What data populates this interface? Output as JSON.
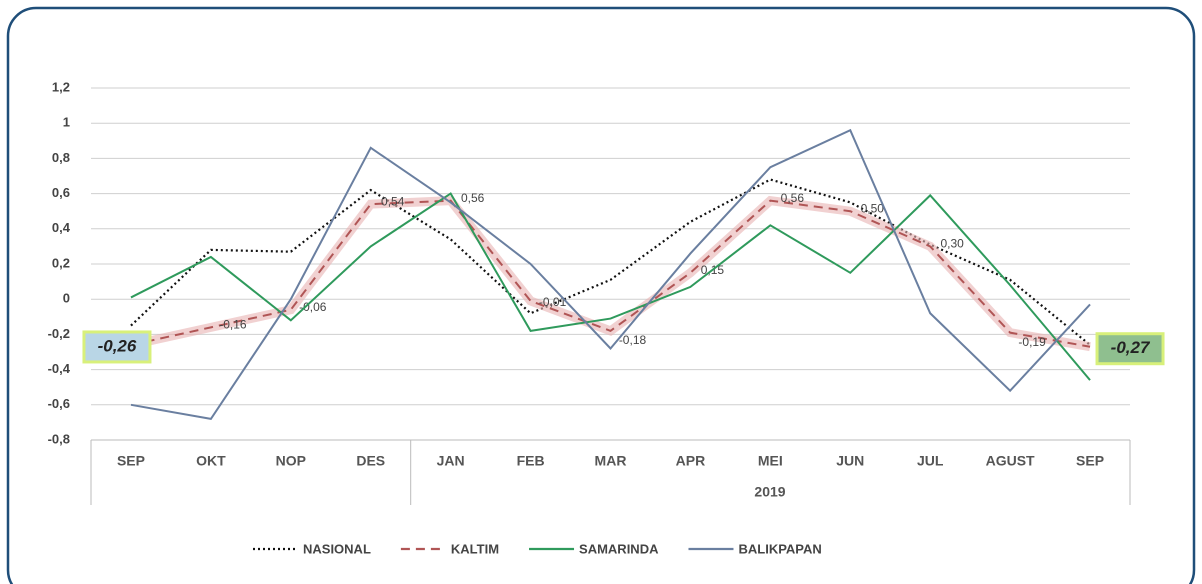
{
  "chart_data": {
    "type": "line",
    "categories": [
      "SEP",
      "OKT",
      "NOP",
      "DES",
      "JAN",
      "FEB",
      "MAR",
      "APR",
      "MEI",
      "JUN",
      "JUL",
      "AGUST",
      "SEP"
    ],
    "group_label": "2019",
    "ylim": [
      -0.8,
      1.2
    ],
    "yticks": [
      {
        "value": -0.8,
        "label": "-0,8"
      },
      {
        "value": -0.6,
        "label": "-0,6"
      },
      {
        "value": -0.4,
        "label": "-0,4"
      },
      {
        "value": -0.2,
        "label": "-0,2"
      },
      0,
      {
        "value": 0.2,
        "label": "0,2"
      },
      {
        "value": 0.4,
        "label": "0,4"
      },
      {
        "value": 0.6,
        "label": "0,6"
      },
      {
        "value": 0.8,
        "label": "0,8"
      },
      1,
      {
        "value": 1.2,
        "label": "1,2"
      }
    ],
    "grid": true,
    "series": [
      {
        "name": "NASIONAL",
        "color": "#111111",
        "style": "dotted",
        "values": [
          -0.15,
          0.28,
          0.27,
          0.62,
          0.34,
          -0.08,
          0.11,
          0.44,
          0.68,
          0.55,
          0.31,
          0.11,
          -0.26
        ]
      },
      {
        "name": "KALTIM",
        "color": "#b05555",
        "style": "dashed",
        "values": [
          -0.26,
          -0.16,
          -0.06,
          0.54,
          0.56,
          -0.01,
          -0.18,
          0.15,
          0.56,
          0.5,
          0.3,
          -0.19,
          -0.27
        ],
        "value_labels": [
          "-0,26",
          "-0,16",
          "-0,06",
          "0,54",
          "0,56",
          "-0,01",
          "-0,18",
          "0,15",
          "0,56",
          "0,50",
          "0,30",
          "-0,19",
          "-0,27"
        ]
      },
      {
        "name": "SAMARINDA",
        "color": "#2f9a5c",
        "style": "solid",
        "values": [
          0.01,
          0.24,
          -0.12,
          0.3,
          0.6,
          -0.18,
          -0.11,
          0.07,
          0.42,
          0.15,
          0.59,
          0.08,
          -0.46
        ]
      },
      {
        "name": "BALIKPAPAN",
        "color": "#6a7fa0",
        "style": "solid",
        "values": [
          -0.6,
          -0.68,
          0.0,
          0.86,
          0.55,
          0.2,
          -0.28,
          0.26,
          0.75,
          0.96,
          -0.08,
          -0.52,
          -0.03
        ]
      }
    ]
  }
}
